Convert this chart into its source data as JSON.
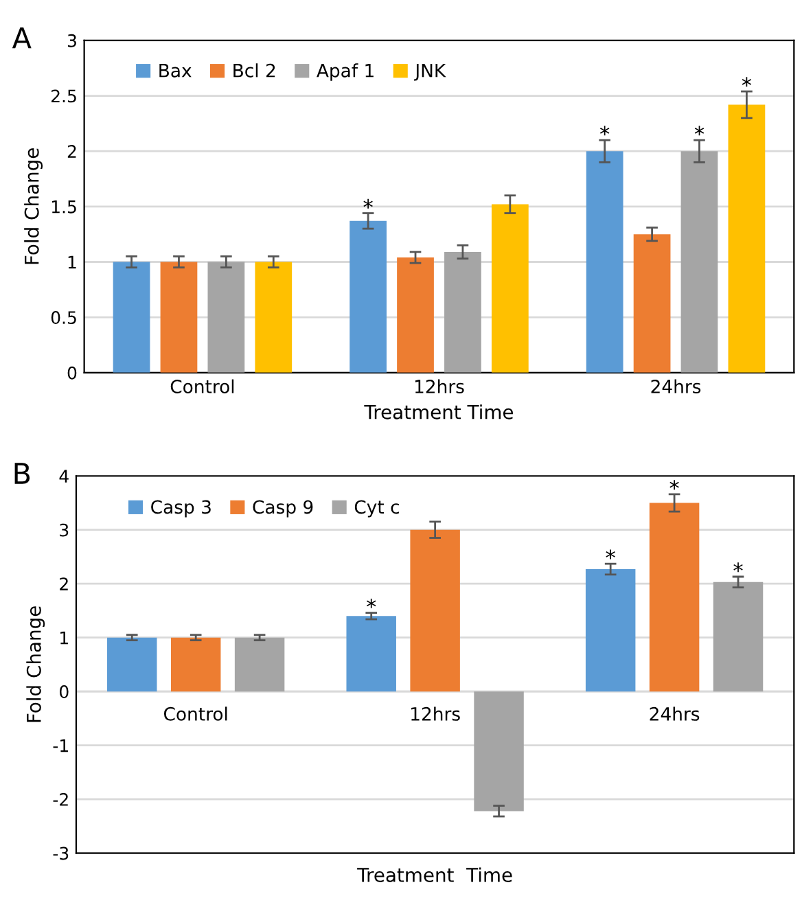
{
  "chart_data": [
    {
      "type": "bar",
      "title": "A",
      "xlabel": "Treatment Time",
      "ylabel": "Fold Change",
      "categories": [
        "Control",
        "12hrs",
        "24hrs"
      ],
      "series": [
        {
          "name": "Bax",
          "color": "#5b9bd5",
          "values": [
            1.0,
            1.37,
            2.0
          ],
          "errors": [
            0.05,
            0.07,
            0.1
          ],
          "value_labels": [
            null,
            "*",
            "*"
          ]
        },
        {
          "name": "Bcl 2",
          "color": "#ed7d31",
          "values": [
            1.0,
            1.04,
            1.25
          ],
          "errors": [
            0.05,
            0.05,
            0.06
          ]
        },
        {
          "name": "Apaf 1",
          "color": "#a5a5a5",
          "values": [
            1.0,
            1.09,
            2.0
          ],
          "errors": [
            0.05,
            0.06,
            0.1
          ],
          "value_labels": [
            null,
            null,
            "*"
          ]
        },
        {
          "name": "JNK",
          "color": "#ffc000",
          "values": [
            1.0,
            1.52,
            2.42
          ],
          "errors": [
            0.05,
            0.08,
            0.12
          ],
          "value_labels": [
            null,
            null,
            "*"
          ]
        }
      ],
      "ylim": [
        0,
        3
      ],
      "yticks": [
        0,
        0.5,
        1,
        1.5,
        2,
        2.5,
        3
      ],
      "grid": "y",
      "legend": "top left"
    },
    {
      "type": "bar",
      "title": "B",
      "xlabel": "Treatment  Time",
      "ylabel": "Fold Change",
      "categories": [
        "Control",
        "12hrs",
        "24hrs"
      ],
      "series": [
        {
          "name": "Casp 3",
          "color": "#5b9bd5",
          "values": [
            1.0,
            1.4,
            2.27
          ],
          "errors": [
            0.05,
            0.06,
            0.1
          ],
          "value_labels": [
            null,
            "*",
            "*"
          ]
        },
        {
          "name": "Casp 9",
          "color": "#ed7d31",
          "values": [
            1.0,
            3.0,
            3.5
          ],
          "errors": [
            0.05,
            0.15,
            0.16
          ],
          "value_labels": [
            null,
            null,
            "*"
          ]
        },
        {
          "name": "Cyt c",
          "color": "#a5a5a5",
          "values": [
            1.0,
            -2.22,
            2.03
          ],
          "errors": [
            0.05,
            0.1,
            0.1
          ],
          "value_labels": [
            null,
            null,
            "*"
          ]
        }
      ],
      "ylim": [
        -3,
        4
      ],
      "yticks": [
        -3,
        -2,
        -1,
        0,
        1,
        2,
        3,
        4
      ],
      "grid": "y",
      "legend": "top left"
    }
  ]
}
